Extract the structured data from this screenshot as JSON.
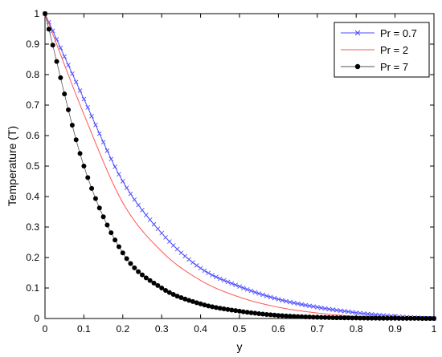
{
  "chart_data": {
    "type": "line",
    "xlabel": "y",
    "ylabel": "Temperature (T)",
    "xlim": [
      0,
      1
    ],
    "ylim": [
      0,
      1
    ],
    "x_ticks": [
      "0",
      "0.1",
      "0.2",
      "0.3",
      "0.4",
      "0.5",
      "0.6",
      "0.7",
      "0.8",
      "0.9",
      "1"
    ],
    "y_ticks": [
      "0",
      "0.1",
      "0.2",
      "0.3",
      "0.4",
      "0.5",
      "0.6",
      "0.7",
      "0.8",
      "0.9",
      "1"
    ],
    "grid": false,
    "legend_position": "top-right",
    "x": [
      0,
      0.1,
      0.2,
      0.3,
      0.4,
      0.5,
      0.6,
      0.7,
      0.8,
      0.9,
      1
    ],
    "series": [
      {
        "name": "Pr = 0.7",
        "color": "#4d4dff",
        "marker": "x",
        "values": [
          1.0,
          0.72,
          0.45,
          0.28,
          0.165,
          0.105,
          0.063,
          0.037,
          0.019,
          0.007,
          0.0
        ]
      },
      {
        "name": "Pr = 2",
        "color": "#ff5555",
        "marker": "none",
        "values": [
          1.0,
          0.67,
          0.38,
          0.22,
          0.125,
          0.07,
          0.037,
          0.018,
          0.007,
          0.002,
          0.0
        ]
      },
      {
        "name": "Pr = 7",
        "color": "#000000",
        "marker": "dot",
        "values": [
          1.0,
          0.5,
          0.215,
          0.1,
          0.048,
          0.024,
          0.01,
          0.004,
          0.0015,
          0.0005,
          0.0
        ]
      }
    ]
  }
}
